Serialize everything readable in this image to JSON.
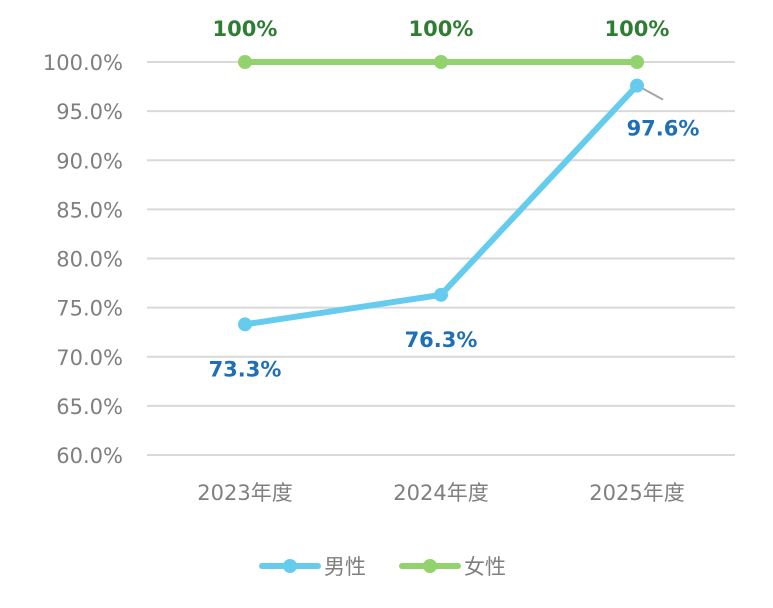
{
  "chart_data": {
    "type": "line",
    "x": [
      "2023年度",
      "2024年度",
      "2025年度"
    ],
    "series": [
      {
        "name": "男性",
        "values": [
          73.3,
          76.3,
          97.6
        ],
        "labels": [
          "73.3%",
          "76.3%",
          "97.6%"
        ],
        "color": "#66ccee",
        "label_color": "#1f6fb6"
      },
      {
        "name": "女性",
        "values": [
          100,
          100,
          100
        ],
        "labels": [
          "100%",
          "100%",
          "100%"
        ],
        "color": "#92d36e",
        "label_color": "#2e7d32"
      }
    ],
    "ylim": [
      60,
      100
    ],
    "yticks": [
      60,
      65,
      70,
      75,
      80,
      85,
      90,
      95,
      100
    ],
    "ytick_labels": [
      "60.0%",
      "65.0%",
      "70.0%",
      "75.0%",
      "80.0%",
      "85.0%",
      "90.0%",
      "95.0%",
      "100.0%"
    ],
    "grid": true,
    "gridline_color": "#d9d9d9",
    "legend_placement": "bottom"
  }
}
